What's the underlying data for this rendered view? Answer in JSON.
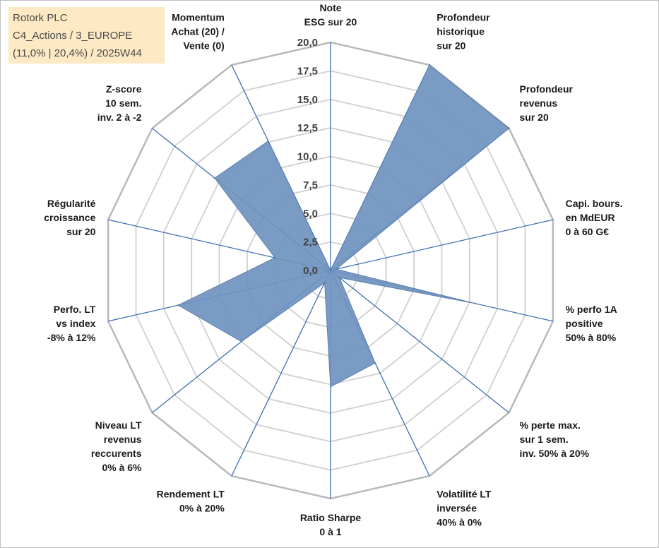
{
  "info": {
    "line1": "Rotork PLC",
    "line2": "C4_Actions / 3_EUROPE",
    "line3": "(11,0% | 20,4%) / 2025W44"
  },
  "chart_data": {
    "type": "radar",
    "title": "",
    "rmin": 0,
    "rmax": 20,
    "ticks": [
      "0,0",
      "2,5",
      "5,0",
      "7,5",
      "10,0",
      "12,5",
      "15,0",
      "17,5",
      "20,0"
    ],
    "axes": [
      [
        "Note",
        "ESG sur 20"
      ],
      [
        "Profondeur",
        "historique",
        "sur 20"
      ],
      [
        "Profondeur",
        "revenus",
        "sur 20"
      ],
      [
        "Capi. bours.",
        "en MdEUR",
        "0 à 60 G€"
      ],
      [
        "% perfo 1A",
        "positive",
        "50% à 80%"
      ],
      [
        "% perte max.",
        "sur 1 sem.",
        "inv. 50% à 20%"
      ],
      [
        "Volatilité LT",
        "inversée",
        "40% à 0%"
      ],
      [
        "Ratio Sharpe",
        "0 à 1"
      ],
      [
        "Rendement LT",
        "0% à 20%"
      ],
      [
        "Niveau LT",
        "revenus",
        "reccurents",
        "0% à 6%"
      ],
      [
        "Perfo. LT",
        "vs index",
        "-8% à 12%"
      ],
      [
        "Régularité",
        "croissance",
        "sur 20"
      ],
      [
        "Z-score",
        "10 sem.",
        "inv. 2 à -2"
      ],
      [
        "Momentum",
        "Achat (20) /",
        "Vente (0)"
      ]
    ],
    "series": [
      {
        "name": "Rotork PLC",
        "color": "#6f93bf",
        "values": [
          0,
          20,
          20,
          0.5,
          13,
          1,
          9,
          10.2,
          1.2,
          10,
          13.7,
          5,
          13,
          12.6
        ]
      }
    ]
  }
}
